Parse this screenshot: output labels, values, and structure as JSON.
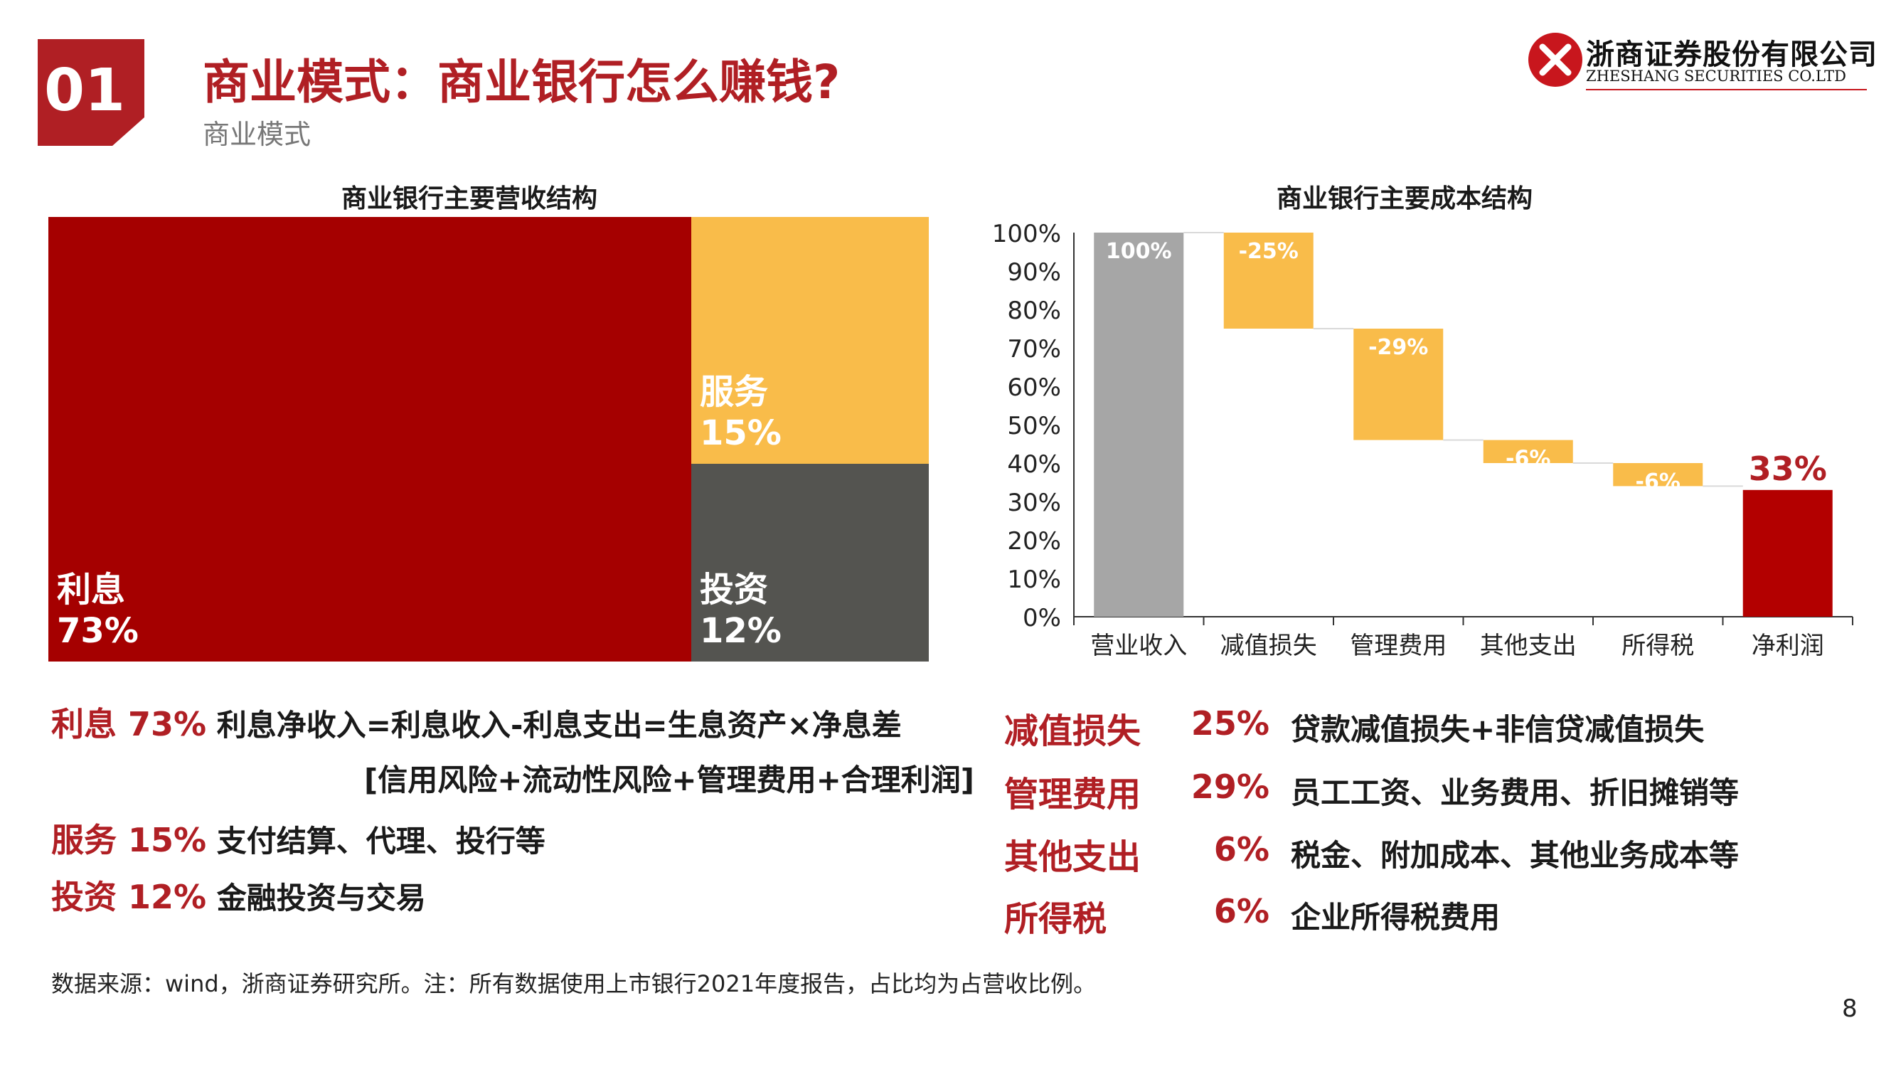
{
  "header": {
    "section_number": "01",
    "title": "商业模式：商业银行怎么赚钱?",
    "subtitle": "商业模式",
    "logo_cn": "浙商证券股份有限公司",
    "logo_en": "ZHESHANG SECURITIES CO.LTD"
  },
  "chart_data": [
    {
      "type": "treemap",
      "title": "商业银行主要营收结构",
      "items": [
        {
          "name": "利息",
          "value": 73,
          "label": "73%",
          "color": "#a50000"
        },
        {
          "name": "服务",
          "value": 15,
          "label": "15%",
          "color": "#f9bc4a"
        },
        {
          "name": "投资",
          "value": 12,
          "label": "12%",
          "color": "#545450"
        }
      ]
    },
    {
      "type": "waterfall",
      "title": "商业银行主要成本结构",
      "categories": [
        "营业收入",
        "减值损失",
        "管理费用",
        "其他支出",
        "所得税",
        "净利润"
      ],
      "values": [
        100,
        -25,
        -29,
        -6,
        -6,
        33
      ],
      "labels": [
        "100%",
        "-25%",
        "-29%",
        "-6%",
        "-6%",
        "33%"
      ],
      "kind": [
        "total",
        "delta",
        "delta",
        "delta",
        "delta",
        "total"
      ],
      "colors": {
        "start": "#a6a6a6",
        "delta": "#f9bc4a",
        "end": "#b30000"
      },
      "ylim": [
        0,
        100
      ],
      "yticks": [
        "0%",
        "10%",
        "20%",
        "30%",
        "40%",
        "50%",
        "60%",
        "70%",
        "80%",
        "90%",
        "100%"
      ]
    }
  ],
  "left_text": {
    "interest_label": "利息 73%",
    "interest_desc": "利息净收入=利息收入-利息支出=生息资产×净息差",
    "interest_desc2": "[信用风险+流动性风险+管理费用+合理利润]",
    "service_label": "服务 15%",
    "service_desc": "支付结算、代理、投行等",
    "invest_label": "投资 12%",
    "invest_desc": "金融投资与交易"
  },
  "right_text": [
    {
      "label": "减值损失",
      "pct": "25%",
      "desc": "贷款减值损失+非信贷减值损失"
    },
    {
      "label": "管理费用",
      "pct": "29%",
      "desc": "员工工资、业务费用、折旧摊销等"
    },
    {
      "label": "其他支出",
      "pct": "6%",
      "desc": "税金、附加成本、其他业务成本等"
    },
    {
      "label": "所得税",
      "pct": "6%",
      "desc": "企业所得税费用"
    }
  ],
  "footer": {
    "source": "数据来源：wind，浙商证券研究所。注：所有数据使用上市银行2021年度报告，占比均为占营收比例。",
    "page": "8"
  }
}
